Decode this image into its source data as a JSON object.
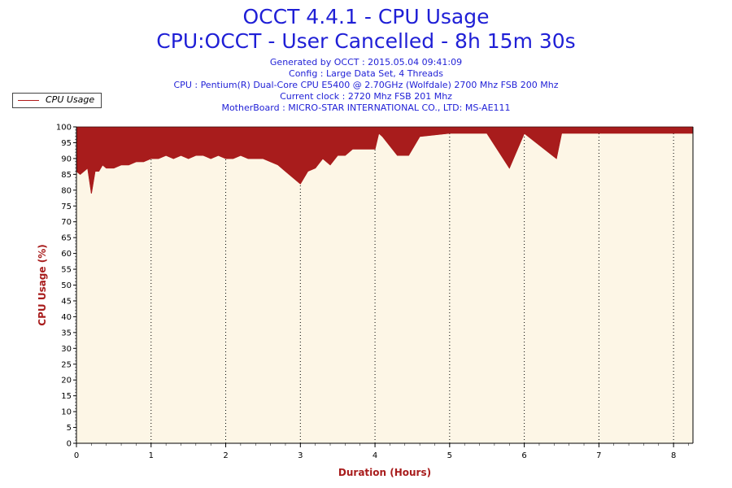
{
  "header": {
    "title": "OCCT 4.4.1 - CPU Usage",
    "subtitle": "CPU:OCCT - User Cancelled - 8h 15m 30s",
    "info_lines": [
      "Generated by OCCT : 2015.05.04 09:41:09",
      "Config : Large Data Set, 4 Threads",
      "CPU : Pentium(R) Dual-Core CPU E5400 @ 2.70GHz (Wolfdale) 2700 Mhz FSB 200 Mhz",
      "Current clock : 2720 Mhz FSB 201 Mhz",
      "MotherBoard : MICRO-STAR INTERNATIONAL CO., LTD: MS-AE111"
    ]
  },
  "colors": {
    "series": "#a81c1c",
    "axis_label": "#a81c1c",
    "plot_background": "#fdf6e6",
    "title": "#1f1fd6"
  },
  "chart_data": {
    "type": "area",
    "xlabel": "Duration (Hours)",
    "ylabel": "CPU Usage (%)",
    "xlim": [
      0,
      8.26
    ],
    "ylim": [
      0,
      100
    ],
    "x_ticks": [
      0,
      1,
      2,
      3,
      4,
      5,
      6,
      7,
      8
    ],
    "y_ticks": [
      0,
      5,
      10,
      15,
      20,
      25,
      30,
      35,
      40,
      45,
      50,
      55,
      60,
      65,
      70,
      75,
      80,
      85,
      90,
      95,
      100
    ],
    "grid": "vertical-dotted",
    "legend_position": "top-left",
    "series": [
      {
        "name": "CPU Usage",
        "x": [
          0,
          0.05,
          0.1,
          0.15,
          0.2,
          0.25,
          0.3,
          0.35,
          0.4,
          0.5,
          0.6,
          0.7,
          0.8,
          0.9,
          1.0,
          1.1,
          1.2,
          1.3,
          1.4,
          1.5,
          1.6,
          1.7,
          1.8,
          1.9,
          2.0,
          2.1,
          2.2,
          2.3,
          2.4,
          2.5,
          2.6,
          2.7,
          2.8,
          2.9,
          3.0,
          3.1,
          3.2,
          3.3,
          3.4,
          3.5,
          3.6,
          3.7,
          3.8,
          3.9,
          4.0,
          4.05,
          4.1,
          4.3,
          4.45,
          4.6,
          5.0,
          5.5,
          5.8,
          6.0,
          6.43,
          6.5,
          7.0,
          7.5,
          8.0,
          8.26
        ],
        "min_values": [
          86,
          85,
          86,
          87,
          79,
          86,
          86,
          88,
          87,
          87,
          88,
          88,
          89,
          89,
          90,
          90,
          91,
          90,
          91,
          90,
          91,
          91,
          90,
          91,
          90,
          90,
          91,
          90,
          90,
          90,
          89,
          88,
          86,
          84,
          82,
          86,
          87,
          90,
          88,
          91,
          91,
          93,
          93,
          93,
          93,
          98,
          97,
          91,
          91,
          97,
          98,
          98,
          87,
          98,
          90,
          98,
          98,
          98,
          98,
          98
        ],
        "max_values": [
          100,
          100,
          100,
          100,
          100,
          100,
          100,
          100,
          100,
          100,
          100,
          100,
          100,
          100,
          100,
          100,
          100,
          100,
          100,
          100,
          100,
          100,
          100,
          100,
          100,
          100,
          100,
          100,
          100,
          100,
          100,
          100,
          100,
          100,
          100,
          100,
          100,
          100,
          100,
          100,
          100,
          100,
          100,
          100,
          100,
          100,
          100,
          100,
          100,
          100,
          100,
          100,
          100,
          100,
          100,
          100,
          100,
          100,
          100,
          100
        ]
      }
    ]
  }
}
